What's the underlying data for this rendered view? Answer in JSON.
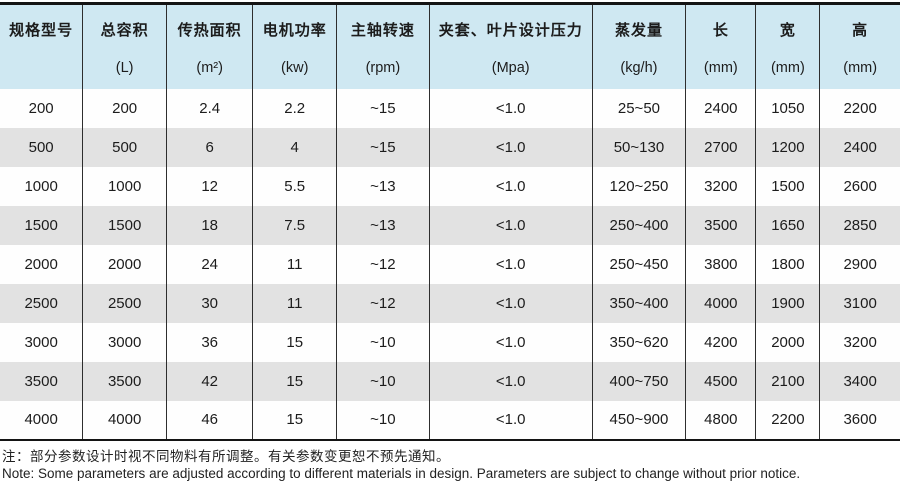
{
  "table": {
    "columns": [
      {
        "name": "规格型号",
        "unit": ""
      },
      {
        "name": "总容积",
        "unit": "(L)"
      },
      {
        "name": "传热面积",
        "unit": "(m²)"
      },
      {
        "name": "电机功率",
        "unit": "(kw)"
      },
      {
        "name": "主轴转速",
        "unit": "(rpm)"
      },
      {
        "name": "夹套、叶片设计压力",
        "unit": "(Mpa)"
      },
      {
        "name": "蒸发量",
        "unit": "(kg/h)"
      },
      {
        "name": "长",
        "unit": "(mm)"
      },
      {
        "name": "宽",
        "unit": "(mm)"
      },
      {
        "name": "高",
        "unit": "(mm)"
      }
    ],
    "rows": [
      [
        "200",
        "200",
        "2.4",
        "2.2",
        "~15",
        "<1.0",
        "25~50",
        "2400",
        "1050",
        "2200"
      ],
      [
        "500",
        "500",
        "6",
        "4",
        "~15",
        "<1.0",
        "50~130",
        "2700",
        "1200",
        "2400"
      ],
      [
        "1000",
        "1000",
        "12",
        "5.5",
        "~13",
        "<1.0",
        "120~250",
        "3200",
        "1500",
        "2600"
      ],
      [
        "1500",
        "1500",
        "18",
        "7.5",
        "~13",
        "<1.0",
        "250~400",
        "3500",
        "1650",
        "2850"
      ],
      [
        "2000",
        "2000",
        "24",
        "11",
        "~12",
        "<1.0",
        "250~450",
        "3800",
        "1800",
        "2900"
      ],
      [
        "2500",
        "2500",
        "30",
        "11",
        "~12",
        "<1.0",
        "350~400",
        "4000",
        "1900",
        "3100"
      ],
      [
        "3000",
        "3000",
        "36",
        "15",
        "~10",
        "<1.0",
        "350~620",
        "4200",
        "2000",
        "3200"
      ],
      [
        "3500",
        "3500",
        "42",
        "15",
        "~10",
        "<1.0",
        "400~750",
        "4500",
        "2100",
        "3400"
      ],
      [
        "4000",
        "4000",
        "46",
        "15",
        "~10",
        "<1.0",
        "450~900",
        "4800",
        "2200",
        "3600"
      ]
    ],
    "column_widths_pct": [
      9.2,
      9.3,
      9.6,
      9.3,
      10.3,
      18.1,
      10.4,
      7.8,
      7.1,
      8.9
    ]
  },
  "notes": {
    "zh": "注：部分参数设计时视不同物料有所调整。有关参数变更恕不预先通知。",
    "en": "Note: Some parameters are adjusted according to different materials in design. Parameters are subject to change without prior notice."
  },
  "colors": {
    "header_bg": "#cfe8f2",
    "stripe_bg": "#e2e2e2",
    "row_bg": "#fefefe",
    "rule": "#141414",
    "grid_line": "#2e2e2e",
    "text": "#1c1c1c"
  }
}
